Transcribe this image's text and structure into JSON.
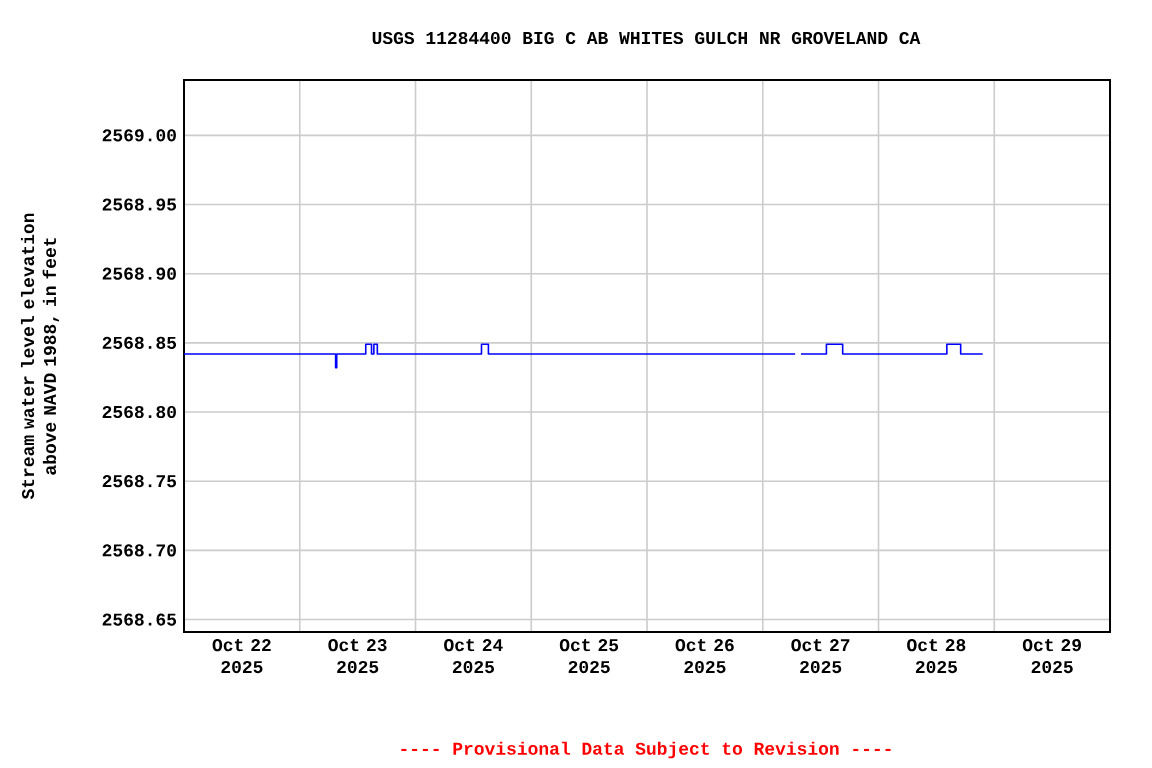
{
  "chart_data": {
    "type": "step",
    "title": "USGS 11284400 BIG C AB WHITES GULCH NR GROVELAND CA",
    "ylabel": "Stream water level elevation above NAVD 1988, in feet",
    "annotations": [
      "---- Provisional Data Subject to Revision ----"
    ],
    "series": [
      {
        "color": "#0000ff",
        "x": [
          "2025-10-22T00:00",
          "2025-10-23T07:12",
          "2025-10-23T07:26",
          "2025-10-23T07:40",
          "2025-10-23T13:41",
          "2025-10-23T14:53",
          "2025-10-23T15:22",
          "2025-10-23T16:05",
          "2025-10-24T13:41",
          "2025-10-24T15:07",
          "2025-10-27T06:43",
          "2025-10-27T06:50",
          "2025-10-27T07:55",
          "2025-10-27T13:12",
          "2025-10-27T16:34",
          "2025-10-28T14:10",
          "2025-10-28T17:02",
          "2025-10-28T21:36"
        ],
        "values": [
          2568.842,
          2568.842,
          2568.832,
          2568.842,
          2568.849,
          2568.842,
          2568.849,
          2568.842,
          2568.849,
          2568.842,
          2568.842,
          null,
          2568.842,
          2568.849,
          2568.842,
          2568.849,
          2568.842,
          2568.842
        ]
      }
    ],
    "xlim": [
      "2025-10-22T00:00",
      "2025-10-30T00:00"
    ],
    "xticks": [
      {
        "value": "2025-10-22T00:00",
        "label": null
      },
      {
        "value": "2025-10-22T12:00",
        "label": "Oct 22 2025"
      },
      {
        "value": "2025-10-23T00:00",
        "label": null
      },
      {
        "value": "2025-10-23T12:00",
        "label": "Oct 23 2025"
      },
      {
        "value": "2025-10-24T00:00",
        "label": null
      },
      {
        "value": "2025-10-24T12:00",
        "label": "Oct 24 2025"
      },
      {
        "value": "2025-10-25T00:00",
        "label": null
      },
      {
        "value": "2025-10-25T12:00",
        "label": "Oct 25 2025"
      },
      {
        "value": "2025-10-26T00:00",
        "label": null
      },
      {
        "value": "2025-10-26T12:00",
        "label": "Oct 26 2025"
      },
      {
        "value": "2025-10-27T00:00",
        "label": null
      },
      {
        "value": "2025-10-27T12:00",
        "label": "Oct 27 2025"
      },
      {
        "value": "2025-10-28T00:00",
        "label": null
      },
      {
        "value": "2025-10-28T12:00",
        "label": "Oct 28 2025"
      },
      {
        "value": "2025-10-29T00:00",
        "label": null
      },
      {
        "value": "2025-10-29T12:00",
        "label": "Oct 29 2025"
      },
      {
        "value": "2025-10-30T00:00",
        "label": null
      }
    ],
    "ylim": [
      2568.641,
      2569.04
    ],
    "yticks": [
      {
        "value": 2568.65,
        "label": "2568.65"
      },
      {
        "value": 2568.7,
        "label": "2568.70"
      },
      {
        "value": 2568.75,
        "label": "2568.75"
      },
      {
        "value": 2568.8,
        "label": "2568.80"
      },
      {
        "value": 2568.85,
        "label": "2568.85"
      },
      {
        "value": 2568.9,
        "label": "2568.90"
      },
      {
        "value": 2568.95,
        "label": "2568.95"
      },
      {
        "value": 2569.0,
        "label": "2569.00"
      }
    ],
    "grid": true
  }
}
